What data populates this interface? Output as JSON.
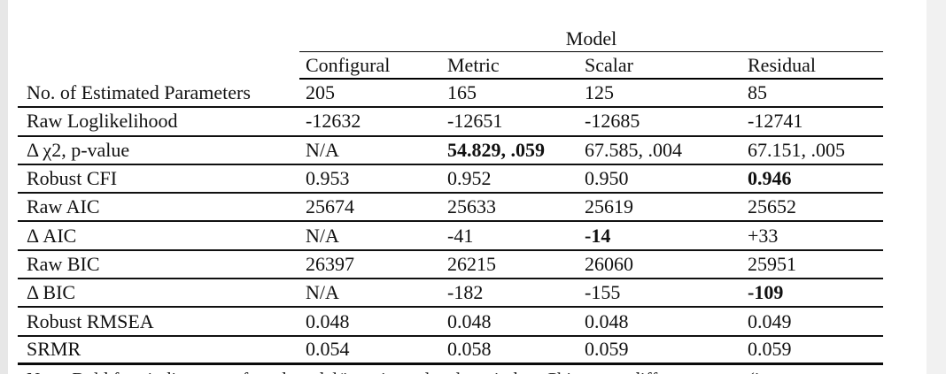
{
  "page": {
    "background": "#ffffff",
    "edge_color": "#e7e7e7",
    "text_color": "#111111",
    "rule_color": "#000000"
  },
  "table": {
    "group_header": "Model",
    "columns": [
      "Configural",
      "Metric",
      "Scalar",
      "Residual"
    ],
    "rows": [
      {
        "label": "No. of Estimated Parameters",
        "values": [
          "205",
          "165",
          "125",
          "85"
        ],
        "bold": [
          false,
          false,
          false,
          false
        ]
      },
      {
        "label": "Raw Loglikelihood",
        "values": [
          "-12632",
          "-12651",
          "-12685",
          "-12741"
        ],
        "bold": [
          false,
          false,
          false,
          false
        ]
      },
      {
        "label": "Δ χ2, p-value",
        "values": [
          "N/A",
          "54.829, .059",
          "67.585, .004",
          "67.151, .005"
        ],
        "bold": [
          false,
          true,
          false,
          false
        ]
      },
      {
        "label": "Robust CFI",
        "values": [
          "0.953",
          "0.952",
          "0.950",
          "0.946"
        ],
        "bold": [
          false,
          false,
          false,
          true
        ]
      },
      {
        "label": "Raw AIC",
        "values": [
          "25674",
          "25633",
          "25619",
          "25652"
        ],
        "bold": [
          false,
          false,
          false,
          false
        ]
      },
      {
        "label": "Δ AIC",
        "values": [
          "N/A",
          "-41",
          "-14",
          "+33"
        ],
        "bold": [
          false,
          false,
          true,
          false
        ]
      },
      {
        "label": "Raw BIC",
        "values": [
          "26397",
          "26215",
          "26060",
          "25951"
        ],
        "bold": [
          false,
          false,
          false,
          false
        ]
      },
      {
        "label": "Δ BIC",
        "values": [
          "N/A",
          "-182",
          "-155",
          "-109"
        ],
        "bold": [
          false,
          false,
          false,
          true
        ]
      },
      {
        "label": "Robust RMSEA",
        "values": [
          "0.048",
          "0.048",
          "0.048",
          "0.049"
        ],
        "bold": [
          false,
          false,
          false,
          false
        ]
      },
      {
        "label": "SRMR",
        "values": [
          "0.054",
          "0.058",
          "0.059",
          "0.059"
        ],
        "bold": [
          false,
          false,
          false,
          false
        ]
      }
    ],
    "note_partial": "Note. Bold font indicates preferred model/invariance level per index. Chi-square difference tests (i"
  }
}
